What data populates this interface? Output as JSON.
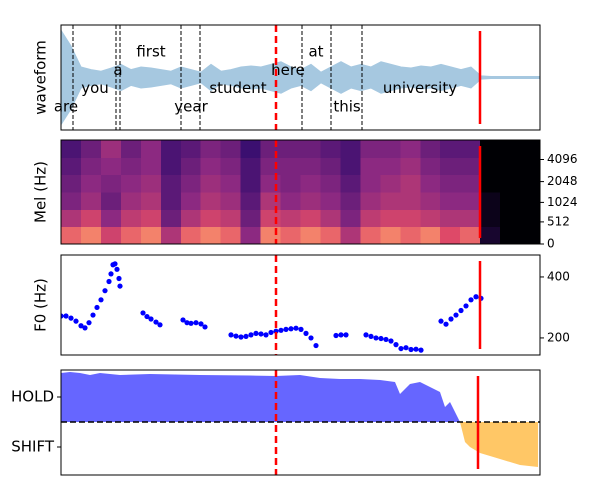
{
  "chart_data": [
    {
      "type": "waveform",
      "ylabel": "waveform",
      "color": "#a6c8e0",
      "xlim": [
        0,
        4.79
      ],
      "ylim": [
        -1,
        1
      ],
      "x": [
        0,
        0.1,
        0.2,
        0.3,
        0.4,
        0.5,
        0.6,
        0.7,
        0.8,
        0.9,
        1.0,
        1.1,
        1.2,
        1.3,
        1.4,
        1.5,
        1.6,
        1.7,
        1.8,
        1.9,
        2.0,
        2.1,
        2.2,
        2.3,
        2.4,
        2.5,
        2.6,
        2.7,
        2.8,
        2.9,
        3.0,
        3.1,
        3.2,
        3.3,
        3.4,
        3.5,
        3.6,
        3.7,
        3.8,
        3.9,
        4.0,
        4.1,
        4.2,
        4.3,
        4.4,
        4.5,
        4.6,
        4.7,
        4.79
      ],
      "values": [
        0.9,
        0.6,
        0.2,
        0.15,
        0.12,
        0.18,
        0.25,
        0.15,
        0.2,
        0.18,
        0.15,
        0.12,
        0.2,
        0.15,
        0.1,
        0.25,
        0.12,
        0.15,
        0.2,
        0.22,
        0.2,
        0.25,
        0.3,
        0.2,
        0.15,
        0.25,
        0.1,
        0.2,
        0.3,
        0.2,
        0.25,
        0.2,
        0.3,
        0.25,
        0.2,
        0.18,
        0.22,
        0.2,
        0.25,
        0.2,
        0.15,
        0.2,
        0.03,
        0.02,
        0.02,
        0.02,
        0.02,
        0.02,
        0.02
      ],
      "boundaries": [
        0.12,
        0.55,
        0.59,
        1.2,
        1.39,
        2.41,
        2.7,
        3.01
      ],
      "words": [
        {
          "text": "are",
          "x": 0.05
        },
        {
          "text": "you",
          "x": 0.34
        },
        {
          "text": "a",
          "x": 0.57
        },
        {
          "text": "first",
          "x": 0.9
        },
        {
          "text": "year",
          "x": 1.3
        },
        {
          "text": "student",
          "x": 1.77
        },
        {
          "text": "here",
          "x": 2.27
        },
        {
          "text": "at",
          "x": 2.55
        },
        {
          "text": "this",
          "x": 2.86
        },
        {
          "text": "university",
          "x": 3.59
        }
      ],
      "vlines": [
        {
          "x": 2.15,
          "color": "#ff0000",
          "style": "dashed"
        },
        {
          "x": 4.19,
          "color": "#ff0000",
          "style": "solid"
        }
      ]
    },
    {
      "type": "heatmap",
      "ylabel": "Mel (Hz)",
      "colormap": "magma",
      "ytick_side": "right",
      "xlim": [
        0,
        4.79
      ],
      "ylim": [
        0,
        80
      ],
      "yticks": [
        0,
        {
          "value": 17,
          "label": "512"
        },
        {
          "value": 32,
          "label": "1024"
        },
        {
          "value": 48,
          "label": "2048"
        },
        {
          "value": 65,
          "label": "4096"
        }
      ],
      "z": [
        [
          0.8,
          0.85,
          0.7,
          0.8,
          0.85,
          0.6,
          0.8,
          0.85,
          0.8,
          0.5,
          0.85,
          0.8,
          0.85,
          0.8,
          0.6,
          0.8,
          0.85,
          0.8,
          0.85,
          0.75,
          0.8,
          0.1,
          0,
          0
        ],
        [
          0.6,
          0.7,
          0.5,
          0.65,
          0.7,
          0.4,
          0.6,
          0.7,
          0.65,
          0.4,
          0.7,
          0.65,
          0.7,
          0.6,
          0.45,
          0.65,
          0.7,
          0.7,
          0.65,
          0.6,
          0.6,
          0.05,
          0,
          0
        ],
        [
          0.45,
          0.55,
          0.4,
          0.55,
          0.6,
          0.35,
          0.5,
          0.6,
          0.55,
          0.35,
          0.6,
          0.5,
          0.55,
          0.5,
          0.4,
          0.55,
          0.6,
          0.6,
          0.55,
          0.5,
          0.5,
          0.05,
          0,
          0
        ],
        [
          0.4,
          0.5,
          0.45,
          0.5,
          0.55,
          0.35,
          0.45,
          0.55,
          0.5,
          0.3,
          0.5,
          0.45,
          0.5,
          0.45,
          0.35,
          0.5,
          0.55,
          0.6,
          0.5,
          0.45,
          0.45,
          0,
          0,
          0
        ],
        [
          0.35,
          0.45,
          0.5,
          0.45,
          0.5,
          0.3,
          0.4,
          0.5,
          0.45,
          0.3,
          0.45,
          0.45,
          0.45,
          0.4,
          0.3,
          0.5,
          0.5,
          0.55,
          0.45,
          0.4,
          0.4,
          0,
          0,
          0
        ],
        [
          0.3,
          0.4,
          0.55,
          0.4,
          0.5,
          0.3,
          0.35,
          0.45,
          0.4,
          0.25,
          0.4,
          0.4,
          0.4,
          0.35,
          0.3,
          0.45,
          0.45,
          0.5,
          0.4,
          0.35,
          0.35,
          0,
          0,
          0
        ]
      ],
      "vlines": [
        {
          "x": 2.15,
          "color": "#ff0000",
          "style": "dashed"
        },
        {
          "x": 4.19,
          "color": "#ff0000",
          "style": "solid"
        }
      ]
    },
    {
      "type": "scatter",
      "ylabel": "F0 (Hz)",
      "color": "#0000ff",
      "ytick_side": "right",
      "xlim": [
        0,
        4.79
      ],
      "ylim": [
        144,
        472
      ],
      "yticks": [
        200,
        400
      ],
      "x": [
        0.0,
        0.05,
        0.1,
        0.15,
        0.2,
        0.24,
        0.28,
        0.32,
        0.36,
        0.4,
        0.44,
        0.48,
        0.5,
        0.52,
        0.54,
        0.56,
        0.58,
        0.59,
        0.82,
        0.86,
        0.9,
        0.95,
        0.99,
        1.22,
        1.26,
        1.3,
        1.35,
        1.4,
        1.44,
        1.7,
        1.75,
        1.8,
        1.85,
        1.9,
        1.95,
        2.0,
        2.05,
        2.1,
        2.15,
        2.2,
        2.25,
        2.3,
        2.35,
        2.4,
        2.45,
        2.5,
        2.55,
        2.75,
        2.8,
        2.85,
        3.05,
        3.1,
        3.15,
        3.2,
        3.25,
        3.3,
        3.35,
        3.4,
        3.45,
        3.5,
        3.55,
        3.6,
        3.8,
        3.85,
        3.9,
        3.95,
        4.0,
        4.05,
        4.1,
        4.15,
        4.2
      ],
      "values": [
        272,
        272,
        265,
        255,
        240,
        233,
        250,
        275,
        300,
        325,
        355,
        385,
        410,
        440,
        443,
        425,
        395,
        370,
        282,
        270,
        262,
        252,
        243,
        259,
        250,
        248,
        250,
        246,
        236,
        210,
        206,
        203,
        205,
        210,
        215,
        213,
        210,
        218,
        222,
        225,
        228,
        230,
        232,
        228,
        215,
        200,
        175,
        208,
        210,
        210,
        210,
        205,
        200,
        198,
        195,
        190,
        178,
        165,
        168,
        162,
        163,
        160,
        255,
        245,
        262,
        275,
        290,
        305,
        325,
        335,
        330
      ],
      "vlines": [
        {
          "x": 2.15,
          "color": "#ff0000",
          "style": "dashed"
        },
        {
          "x": 4.19,
          "color": "#ff0000",
          "style": "solid"
        }
      ]
    },
    {
      "type": "area",
      "ytick_side": "left",
      "positive_color": "#6666ff",
      "negative_color": "#ffc766",
      "xlim": [
        0,
        4.79
      ],
      "ylim": [
        -1.06,
        1.04
      ],
      "yticks": [
        {
          "value": 0.5,
          "label": "HOLD"
        },
        {
          "value": -0.5,
          "label": "SHIFT"
        }
      ],
      "hline": 0,
      "x": [
        0,
        0.09,
        0.19,
        0.29,
        0.39,
        0.49,
        0.59,
        0.89,
        1.39,
        1.89,
        2.15,
        2.39,
        2.59,
        2.79,
        2.99,
        3.19,
        3.34,
        3.39,
        3.49,
        3.59,
        3.69,
        3.79,
        3.84,
        3.89,
        3.94,
        3.99,
        4.04,
        4.09,
        4.19,
        4.39,
        4.59,
        4.77
      ],
      "values": [
        0.98,
        1.0,
        0.98,
        0.94,
        0.98,
        0.96,
        0.94,
        0.96,
        0.94,
        0.93,
        0.92,
        0.94,
        0.88,
        0.86,
        0.86,
        0.84,
        0.8,
        0.56,
        0.76,
        0.8,
        0.7,
        0.6,
        0.3,
        0.4,
        0.2,
        0,
        -0.4,
        -0.5,
        -0.62,
        -0.74,
        -0.86,
        -0.9
      ],
      "vlines": [
        {
          "x": 2.15,
          "color": "#ff0000",
          "style": "dashed"
        },
        {
          "x": 4.17,
          "color": "#ff0000",
          "style": "solid"
        }
      ]
    }
  ]
}
